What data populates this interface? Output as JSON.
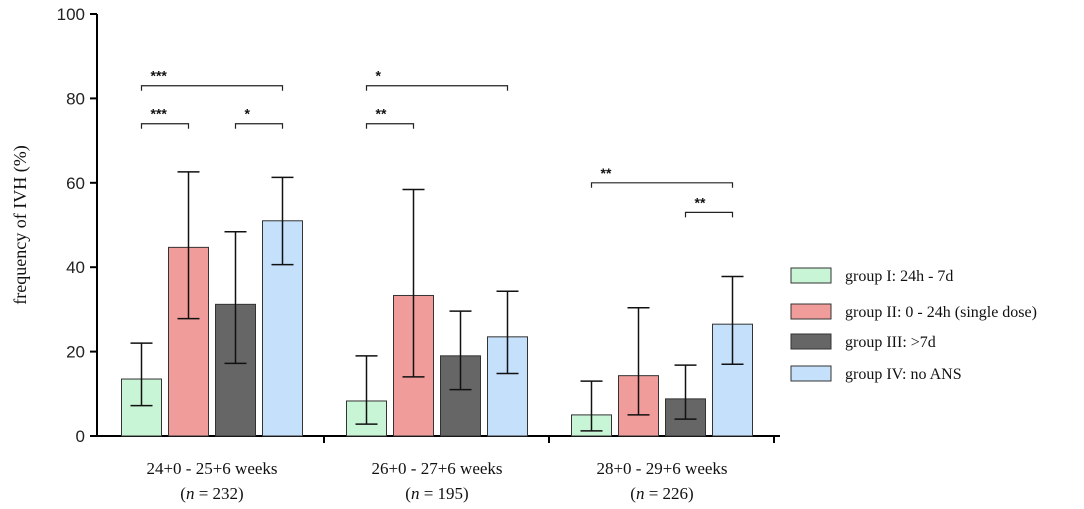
{
  "chart_data": {
    "type": "bar",
    "ylabel": "frequency of IVH (%)",
    "ylim": [
      0,
      100
    ],
    "yticks": [
      0,
      20,
      40,
      60,
      80,
      100
    ],
    "categories": [
      {
        "label": "24+0 - 25+6 weeks",
        "n_prefix": "(",
        "n_var": "n",
        "n_suffix": " = 232)"
      },
      {
        "label": "26+0 - 27+6 weeks",
        "n_prefix": "(",
        "n_var": "n",
        "n_suffix": " = 195)"
      },
      {
        "label": "28+0 - 29+6 weeks",
        "n_prefix": "(",
        "n_var": "n",
        "n_suffix": " = 226)"
      }
    ],
    "series": [
      {
        "name": "group I: 24h - 7d",
        "color": "#c8f5d6",
        "values": [
          13.5,
          8.3,
          5.0
        ],
        "err_low": [
          7.2,
          2.8,
          1.2
        ],
        "err_high": [
          22.0,
          19.0,
          13.0
        ]
      },
      {
        "name": "group II: 0 - 24h (single dose)",
        "color": "#f09c9a",
        "values": [
          44.7,
          33.3,
          14.3
        ],
        "err_low": [
          27.8,
          14.0,
          5.0
        ],
        "err_high": [
          62.6,
          58.4,
          30.4
        ]
      },
      {
        "name": "group III: >7d",
        "color": "#666666",
        "values": [
          31.2,
          19.0,
          8.8
        ],
        "err_low": [
          17.2,
          11.0,
          4.0
        ],
        "err_high": [
          48.4,
          29.6,
          16.8
        ]
      },
      {
        "name": "group IV: no ANS",
        "color": "#c4e0fb",
        "values": [
          51.0,
          23.5,
          26.5
        ],
        "err_low": [
          40.6,
          14.8,
          17.0
        ],
        "err_high": [
          61.3,
          34.3,
          37.8
        ]
      }
    ],
    "significance": [
      {
        "category": 0,
        "from": 0,
        "to": 3,
        "y": 83,
        "label": "***"
      },
      {
        "category": 0,
        "from": 0,
        "to": 1,
        "y": 74,
        "label": "***"
      },
      {
        "category": 0,
        "from": 2,
        "to": 3,
        "y": 74,
        "label": "*"
      },
      {
        "category": 1,
        "from": 0,
        "to": 3,
        "y": 83,
        "label": "*"
      },
      {
        "category": 1,
        "from": 0,
        "to": 1,
        "y": 74,
        "label": "**"
      },
      {
        "category": 2,
        "from": 0,
        "to": 3,
        "y": 60,
        "label": "**"
      },
      {
        "category": 2,
        "from": 2,
        "to": 3,
        "y": 53,
        "label": "**"
      }
    ],
    "legend_position": "right"
  }
}
